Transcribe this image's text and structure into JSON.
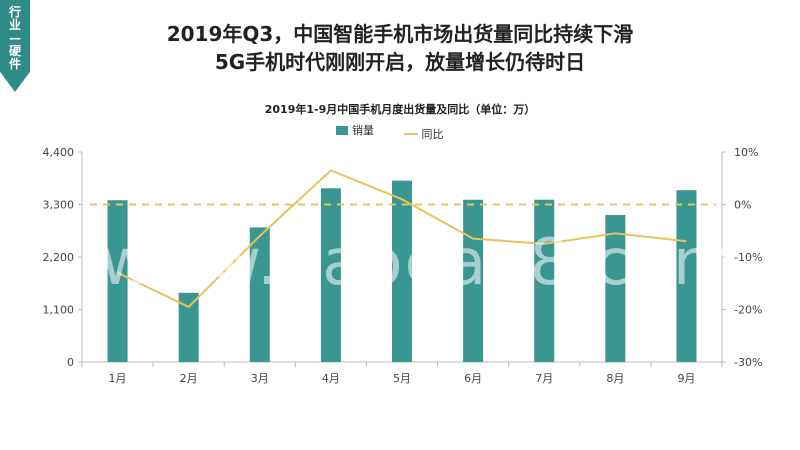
{
  "tag": {
    "text": "行业—硬件"
  },
  "headline": {
    "line1": "2019年Q3，中国智能手机市场出货量同比持续下滑",
    "line2": "5G手机时代刚刚开启，放量增长仍待时日"
  },
  "watermark": "www.baogao8.com",
  "colors": {
    "bar": "#3a9690",
    "line": "#e8c25a",
    "tag": "#2e8b86"
  },
  "chart_data": {
    "type": "bar",
    "title": "2019年1-9月中国手机月度出货量及同比（单位：万）",
    "categories": [
      "1月",
      "2月",
      "3月",
      "4月",
      "5月",
      "6月",
      "7月",
      "8月",
      "9月"
    ],
    "series": [
      {
        "name": "销量",
        "type": "bar",
        "axis": "left",
        "values": [
          3390,
          1450,
          2820,
          3640,
          3800,
          3400,
          3400,
          3080,
          3600
        ]
      },
      {
        "name": "同比",
        "type": "line",
        "axis": "right",
        "values": [
          -13.0,
          -19.5,
          -6.0,
          6.5,
          1.0,
          -6.5,
          -7.5,
          -5.5,
          -7.0
        ]
      }
    ],
    "reference_line": {
      "axis": "right",
      "value": 0,
      "style": "dashed"
    },
    "y_left": {
      "ticks": [
        "0",
        "1,100",
        "2,200",
        "3,300",
        "4,400"
      ],
      "ylim": [
        0,
        4400
      ]
    },
    "y_right": {
      "ticks": [
        "-30%",
        "-20%",
        "-10%",
        "0%",
        "10%"
      ],
      "ylim": [
        -30,
        10
      ]
    },
    "legend": "top-center",
    "grid": false
  }
}
